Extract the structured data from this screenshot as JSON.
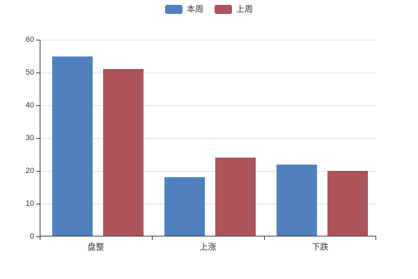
{
  "chart_data": {
    "type": "bar",
    "categories": [
      "盘整",
      "上涨",
      "下跌"
    ],
    "series": [
      {
        "name": "本周",
        "color": "#4e81bd",
        "values": [
          55,
          18,
          22
        ]
      },
      {
        "name": "上周",
        "color": "#ad545a",
        "values": [
          51,
          24,
          20
        ]
      }
    ],
    "yticks": [
      0,
      10,
      20,
      30,
      40,
      50,
      60
    ],
    "ylim": [
      0,
      60
    ],
    "grid": "horizontal",
    "legend_position": "top-center"
  },
  "colors": {
    "background": "#ffffff",
    "gridline": "#e0e0e0",
    "axis": "#2f2f2f",
    "tick_label": "#333333"
  }
}
